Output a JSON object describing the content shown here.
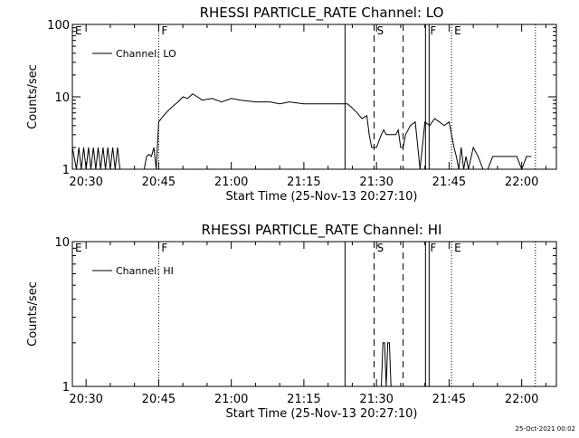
{
  "footer_date": "25-Oct-2021 00:02",
  "chart_data": [
    {
      "type": "line",
      "title": "RHESSI PARTICLE_RATE Channel: LO",
      "xlabel": "Start Time (25-Nov-13 20:27:10)",
      "ylabel": "Counts/sec",
      "y_scale": "log",
      "ylim": [
        1,
        100
      ],
      "y_ticks": [
        {
          "v": 1,
          "label": "1"
        },
        {
          "v": 10,
          "label": "10"
        },
        {
          "v": 100,
          "label": "100"
        }
      ],
      "xlim": [
        "20:27:10",
        "22:07:10"
      ],
      "x_ticks": [
        "20:30",
        "20:45",
        "21:00",
        "21:15",
        "21:30",
        "21:45",
        "22:00"
      ],
      "legend": {
        "label": "Channel: LO",
        "placement": "top-left"
      },
      "grid": false,
      "series": [
        {
          "name": "Channel: LO",
          "x": [
            "20:27:10",
            "20:28:00",
            "20:28:30",
            "20:29:00",
            "20:29:30",
            "20:30:00",
            "20:30:30",
            "20:31:00",
            "20:31:30",
            "20:32:00",
            "20:32:30",
            "20:33:00",
            "20:33:30",
            "20:34:00",
            "20:34:30",
            "20:35:00",
            "20:35:30",
            "20:36:00",
            "20:36:30",
            "20:37:00",
            "20:38:00",
            "20:39:00",
            "20:40:00",
            "20:41:00",
            "20:42:00",
            "20:42:30",
            "20:43:00",
            "20:43:30",
            "20:44:00",
            "20:44:30",
            "20:45:00",
            "20:46:00",
            "20:47:00",
            "20:48:00",
            "20:49:00",
            "20:50:00",
            "20:51:00",
            "20:52:00",
            "20:53:00",
            "20:54:00",
            "20:56:00",
            "20:58:00",
            "21:00:00",
            "21:02:00",
            "21:05:00",
            "21:08:00",
            "21:10:00",
            "21:12:00",
            "21:15:00",
            "21:18:00",
            "21:20:00",
            "21:22:00",
            "21:24:00",
            "21:25:00",
            "21:26:00",
            "21:27:00",
            "21:28:00",
            "21:28:30",
            "21:29:00",
            "21:30:00",
            "21:31:00",
            "21:31:30",
            "21:32:00",
            "21:33:00",
            "21:34:00",
            "21:34:30",
            "21:35:00",
            "21:35:30",
            "21:36:00",
            "21:37:00",
            "21:38:00",
            "21:39:00",
            "21:40:00",
            "21:41:00",
            "21:42:00",
            "21:43:00",
            "21:44:00",
            "21:45:00",
            "21:45:30",
            "21:46:00",
            "21:46:30",
            "21:47:00",
            "21:47:30",
            "21:48:00",
            "21:48:30",
            "21:49:00",
            "21:50:00",
            "21:51:00",
            "21:52:00",
            "21:53:00",
            "21:54:00",
            "21:55:00",
            "21:56:00",
            "21:57:00",
            "21:58:00",
            "21:59:00",
            "22:00:00",
            "22:01:00",
            "22:02:00"
          ],
          "y": [
            2,
            1,
            2,
            1,
            2,
            1,
            2,
            1,
            2,
            1,
            2,
            1,
            2,
            1,
            2,
            1,
            2,
            1,
            2,
            1,
            1,
            1,
            1,
            1,
            1,
            1.5,
            1.6,
            1.5,
            2,
            1,
            4.5,
            5.5,
            6.5,
            7.5,
            8.5,
            10,
            9.5,
            11,
            10,
            9,
            9.5,
            8.5,
            9.5,
            9,
            8.5,
            8.5,
            8,
            8.5,
            8,
            8,
            8,
            8,
            8,
            7,
            6,
            5,
            5.5,
            3,
            2,
            2,
            3,
            3.5,
            3,
            3,
            3,
            3.5,
            2,
            2,
            3,
            4,
            4.5,
            1,
            4.5,
            4,
            5,
            4.5,
            4,
            4.5,
            3,
            2,
            1.5,
            1,
            2,
            1,
            1.5,
            1,
            2,
            1.5,
            1,
            1,
            1.5,
            1.5,
            1.5,
            1.5,
            1.5,
            1.5,
            1,
            1.5,
            1.5
          ]
        }
      ],
      "annotations": [
        {
          "label": "E",
          "x": "20:27:10",
          "style": "text"
        },
        {
          "label": "F",
          "x": "20:45:00",
          "style": "dotted"
        },
        {
          "label": "",
          "x": "21:23:30",
          "style": "solid"
        },
        {
          "label": "S",
          "x": "21:29:30",
          "style": "dashed"
        },
        {
          "label": "",
          "x": "21:35:30",
          "style": "dashed"
        },
        {
          "label": "F",
          "x": "21:40:30",
          "style": "double"
        },
        {
          "label": "E",
          "x": "21:45:30",
          "style": "dotted"
        },
        {
          "label": "",
          "x": "22:02:50",
          "style": "dotted"
        }
      ]
    },
    {
      "type": "line",
      "title": "RHESSI PARTICLE_RATE Channel: HI",
      "xlabel": "Start Time (25-Nov-13 20:27:10)",
      "ylabel": "Counts/sec",
      "y_scale": "log",
      "ylim": [
        1,
        10
      ],
      "y_ticks": [
        {
          "v": 1,
          "label": "1"
        },
        {
          "v": 10,
          "label": "10"
        }
      ],
      "xlim": [
        "20:27:10",
        "22:07:10"
      ],
      "x_ticks": [
        "20:30",
        "20:45",
        "21:00",
        "21:15",
        "21:30",
        "21:45",
        "22:00"
      ],
      "legend": {
        "label": "Channel: HI",
        "placement": "top-left"
      },
      "grid": false,
      "series": [
        {
          "name": "Channel: HI",
          "x": [
            "21:31:00",
            "21:31:20",
            "21:31:40",
            "21:32:00",
            "21:32:20",
            "21:32:40",
            "21:33:00",
            "21:33:20"
          ],
          "y": [
            1,
            2,
            2,
            1,
            2,
            2,
            1,
            1
          ]
        }
      ],
      "annotations": [
        {
          "label": "E",
          "x": "20:27:10",
          "style": "text"
        },
        {
          "label": "F",
          "x": "20:45:00",
          "style": "dotted"
        },
        {
          "label": "",
          "x": "21:23:30",
          "style": "solid"
        },
        {
          "label": "S",
          "x": "21:29:30",
          "style": "dashed"
        },
        {
          "label": "",
          "x": "21:35:30",
          "style": "dashed"
        },
        {
          "label": "F",
          "x": "21:40:30",
          "style": "double"
        },
        {
          "label": "E",
          "x": "21:45:30",
          "style": "dotted"
        },
        {
          "label": "",
          "x": "22:02:50",
          "style": "dotted"
        }
      ]
    }
  ]
}
